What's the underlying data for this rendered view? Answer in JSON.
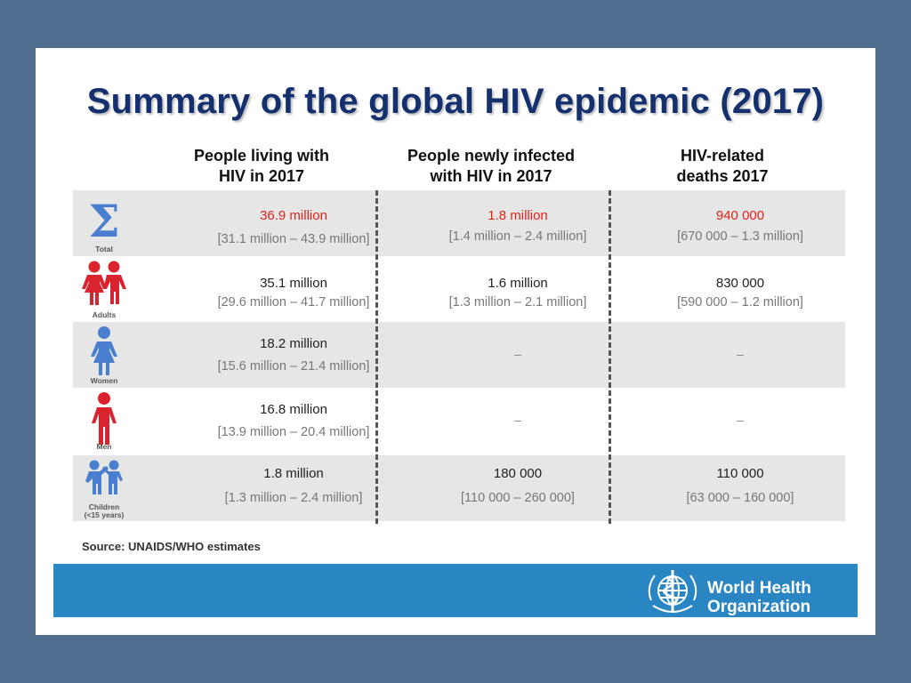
{
  "title": "Summary of the global HIV epidemic (2017)",
  "columns": [
    {
      "line1": "People living with",
      "line2": "HIV in 2017"
    },
    {
      "line1": "People newly infected",
      "line2": "with HIV in 2017"
    },
    {
      "line1": "HIV-related",
      "line2": "deaths 2017"
    }
  ],
  "rows": [
    {
      "label": "Total",
      "icon": "sigma-icon",
      "cells": [
        {
          "value": "36.9 million",
          "range": "[31.1 million – 43.9 million]"
        },
        {
          "value": "1.8 million",
          "range": "[1.4 million – 2.4 million]"
        },
        {
          "value": "940 000",
          "range": "[670 000 – 1.3 million]"
        }
      ]
    },
    {
      "label": "Adults",
      "icon": "adults-icon",
      "cells": [
        {
          "value": "35.1 million",
          "range": "[29.6 million – 41.7 million]"
        },
        {
          "value": "1.6 million",
          "range": "[1.3 million – 2.1 million]"
        },
        {
          "value": "830 000",
          "range": "[590 000 – 1.2 million]"
        }
      ]
    },
    {
      "label": "Women",
      "icon": "woman-icon",
      "cells": [
        {
          "value": "18.2 million",
          "range": "[15.6 million – 21.4 million]"
        },
        {
          "dash": "–"
        },
        {
          "dash": "–"
        }
      ]
    },
    {
      "label": "Men",
      "icon": "man-icon",
      "cells": [
        {
          "value": "16.8 million",
          "range": "[13.9 million – 20.4 million]"
        },
        {
          "dash": "–"
        },
        {
          "dash": "–"
        }
      ]
    },
    {
      "label_line1": "Children",
      "label_line2": "(<15 years)",
      "icon": "children-icon",
      "cells": [
        {
          "value": "1.8 million",
          "range": "[1.3 million – 2.4 million]"
        },
        {
          "value": "180 000",
          "range": "[110 000 – 260 000]"
        },
        {
          "value": "110 000",
          "range": "[63 000 – 160 000]"
        }
      ]
    }
  ],
  "source": "Source: UNAIDS/WHO estimates",
  "logo": {
    "line1": "World Health",
    "line2": "Organization"
  },
  "colors": {
    "background": "#4f6d8f",
    "title": "#14306e",
    "highlight_red": "#e2231a",
    "icon_blue": "#4a7fd0",
    "icon_red": "#d9232e",
    "footer_blue": "#2a86c3",
    "row_shade": "#e6e6e6"
  }
}
